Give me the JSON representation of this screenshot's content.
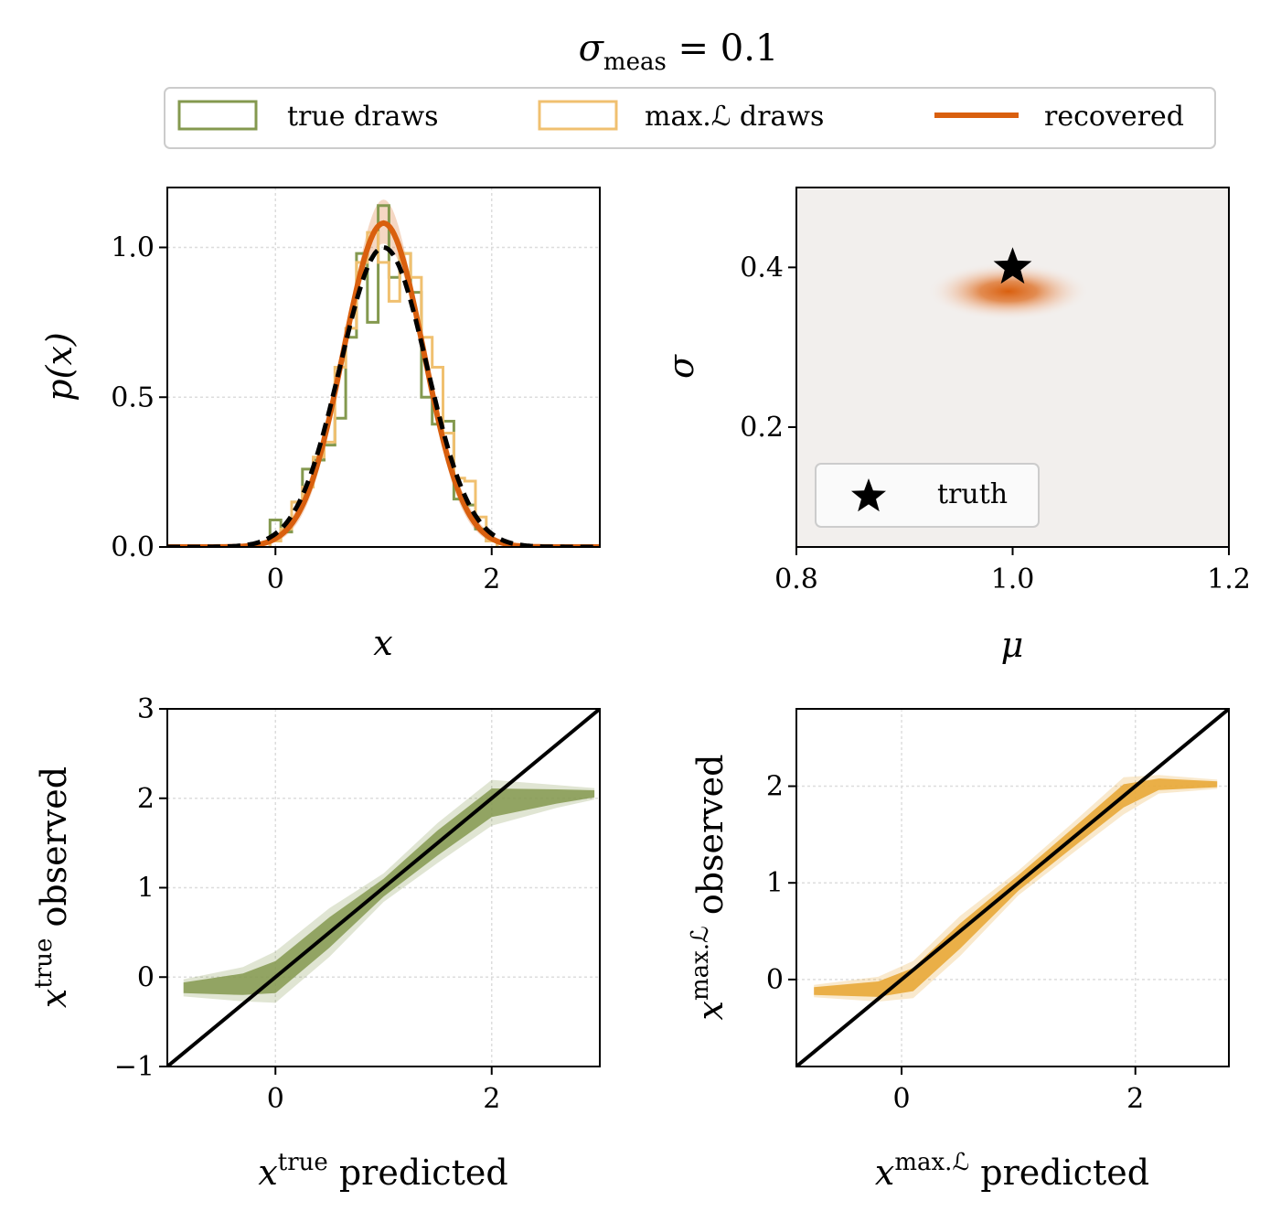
{
  "figure_title": "σ",
  "figure_title_sub": "meas",
  "figure_title_rest": " = 0.1",
  "legend": {
    "entries": [
      {
        "label": "true draws",
        "kind": "step",
        "color": "#84994f"
      },
      {
        "label": "max.ℒ draws",
        "kind": "step",
        "color": "#f0c070"
      },
      {
        "label": "recovered",
        "kind": "line",
        "color": "#d95f0e"
      }
    ]
  },
  "colors": {
    "green": "#84994f",
    "gold": "#e8a838",
    "light_gold": "#f0c070",
    "orange": "#d95f0e",
    "panel_bg": "#f2efed",
    "grid": "#dddddd"
  },
  "chart_data": [
    {
      "id": "density",
      "type": "line",
      "title": "",
      "xlabel": "x",
      "ylabel": "p(x)",
      "xlim": [
        -1,
        3
      ],
      "ylim": [
        0,
        1.2
      ],
      "xticks": [
        0,
        2
      ],
      "xtick_labels": [
        "0",
        "2"
      ],
      "yticks": [
        0.0,
        0.5,
        1.0
      ],
      "ytick_labels": [
        "0.0",
        "0.5",
        "1.0"
      ],
      "grid": true,
      "true_draws_hist": {
        "edges": [
          -0.05,
          0.05,
          0.15,
          0.25,
          0.35,
          0.45,
          0.55,
          0.65,
          0.75,
          0.85,
          0.95,
          1.05,
          1.15,
          1.25,
          1.35,
          1.45,
          1.55,
          1.65,
          1.75,
          1.85,
          1.95,
          2.05
        ],
        "values": [
          0.09,
          0.05,
          0.15,
          0.26,
          0.29,
          0.34,
          0.43,
          0.7,
          0.98,
          0.75,
          1.14,
          0.9,
          0.98,
          0.85,
          0.5,
          0.41,
          0.42,
          0.16,
          0.14,
          0.06,
          0.02
        ]
      },
      "max_L_draws_hist": {
        "edges": [
          -0.05,
          0.05,
          0.15,
          0.25,
          0.35,
          0.45,
          0.55,
          0.65,
          0.75,
          0.85,
          0.95,
          1.05,
          1.15,
          1.25,
          1.35,
          1.45,
          1.55,
          1.65,
          1.75,
          1.85,
          1.95,
          2.05
        ],
        "values": [
          0.02,
          0.06,
          0.15,
          0.2,
          0.3,
          0.35,
          0.6,
          0.73,
          0.95,
          1.05,
          0.95,
          0.82,
          0.98,
          0.9,
          0.7,
          0.6,
          0.38,
          0.23,
          0.22,
          0.1,
          0.02
        ]
      },
      "truth_curve": {
        "mu": 1.0,
        "sigma": 0.4,
        "style": "dashed",
        "color": "#000000"
      },
      "recovered_curve": {
        "mu": 1.0,
        "sigma": 0.37,
        "band_sigma": [
          0.345,
          0.395
        ],
        "color": "#d95f0e"
      }
    },
    {
      "id": "posterior",
      "type": "heatmap",
      "title": "",
      "xlabel": "μ",
      "ylabel": "σ",
      "xlim": [
        0.8,
        1.2
      ],
      "ylim": [
        0.05,
        0.5
      ],
      "xticks": [
        0.8,
        1.0,
        1.2
      ],
      "xtick_labels": [
        "0.8",
        "1.0",
        "1.2"
      ],
      "yticks": [
        0.2,
        0.4
      ],
      "ytick_labels": [
        "0.2",
        "0.4"
      ],
      "grid": false,
      "posterior_peak": {
        "mu": 0.996,
        "sigma": 0.37,
        "spread_mu": 0.025,
        "spread_sigma": 0.012
      },
      "truth": {
        "mu": 1.0,
        "sigma": 0.4
      },
      "legend_label": "truth",
      "legend_position": "lower-left"
    },
    {
      "id": "pp_true",
      "type": "scatter",
      "title": "",
      "xlabel": "x",
      "xlabel_sup": "true",
      "xlabel_rest": " predicted",
      "ylabel": "x",
      "ylabel_sup": "true",
      "ylabel_rest": " observed",
      "xlim": [
        -1,
        3
      ],
      "ylim": [
        -1,
        3
      ],
      "xticks": [
        0,
        2
      ],
      "xtick_labels": [
        "0",
        "2"
      ],
      "yticks": [
        -1,
        0,
        1,
        2,
        3
      ],
      "ytick_labels": [
        "−1",
        "0",
        "1",
        "2",
        "3"
      ],
      "grid": true,
      "band_center": [
        [
          -0.85,
          -0.12
        ],
        [
          -0.3,
          -0.08
        ],
        [
          0.0,
          0.0
        ],
        [
          0.5,
          0.5
        ],
        [
          1.0,
          1.0
        ],
        [
          1.5,
          1.5
        ],
        [
          2.0,
          1.95
        ],
        [
          2.6,
          2.02
        ],
        [
          2.95,
          2.05
        ]
      ],
      "band_halfwidth": [
        0.06,
        0.12,
        0.18,
        0.17,
        0.1,
        0.14,
        0.16,
        0.08,
        0.04
      ],
      "identity_line": true,
      "color": "#84994f"
    },
    {
      "id": "pp_max",
      "type": "scatter",
      "title": "",
      "xlabel": "x",
      "xlabel_sup": "max.ℒ",
      "xlabel_rest": " predicted",
      "ylabel": "x",
      "ylabel_sup": "max.ℒ",
      "ylabel_rest": " observed",
      "xlim": [
        -0.9,
        2.8
      ],
      "ylim": [
        -0.9,
        2.8
      ],
      "xticks": [
        0,
        2
      ],
      "xtick_labels": [
        "0",
        "2"
      ],
      "yticks": [
        0,
        1,
        2
      ],
      "ytick_labels": [
        "0",
        "1",
        "2"
      ],
      "grid": true,
      "band_center": [
        [
          -0.75,
          -0.12
        ],
        [
          -0.2,
          -0.1
        ],
        [
          0.1,
          0.0
        ],
        [
          0.5,
          0.45
        ],
        [
          1.0,
          1.0
        ],
        [
          1.5,
          1.5
        ],
        [
          1.9,
          1.9
        ],
        [
          2.2,
          2.02
        ],
        [
          2.7,
          2.02
        ]
      ],
      "band_halfwidth": [
        0.04,
        0.08,
        0.12,
        0.13,
        0.08,
        0.1,
        0.12,
        0.06,
        0.03
      ],
      "identity_line": true,
      "color": "#e8a838"
    }
  ]
}
